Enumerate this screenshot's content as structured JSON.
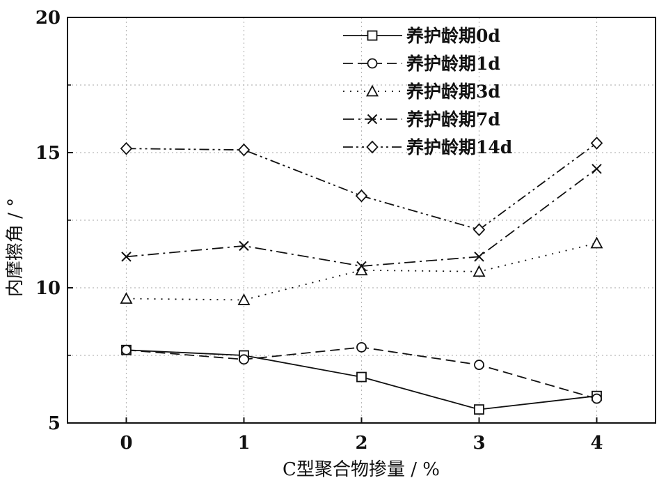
{
  "chart_data": {
    "type": "line",
    "xlabel": "C型聚合物掺量 / %",
    "ylabel": "内摩擦角 / °",
    "x": [
      0,
      1,
      2,
      3,
      4
    ],
    "x_ticks": [
      "0",
      "1",
      "2",
      "3",
      "4"
    ],
    "y_ticks": [
      "5",
      "10",
      "15",
      "20"
    ],
    "xlim": [
      -0.5,
      4.5
    ],
    "ylim": [
      5,
      20
    ],
    "grid": true,
    "legend_position": "top-right",
    "series": [
      {
        "name": "养护龄期0d",
        "marker": "square",
        "dash": "solid",
        "values": [
          7.7,
          7.5,
          6.7,
          5.5,
          6.0
        ]
      },
      {
        "name": "养护龄期1d",
        "marker": "circle",
        "dash": "dashed",
        "values": [
          7.7,
          7.35,
          7.8,
          7.15,
          5.9
        ]
      },
      {
        "name": "养护龄期3d",
        "marker": "triangle",
        "dash": "dotted",
        "values": [
          9.6,
          9.55,
          10.65,
          10.6,
          11.65
        ]
      },
      {
        "name": "养护龄期7d",
        "marker": "x",
        "dash": "dashdot",
        "values": [
          11.15,
          11.55,
          10.8,
          11.15,
          14.4
        ]
      },
      {
        "name": "养护龄期14d",
        "marker": "diamond",
        "dash": "dashdotdot",
        "values": [
          15.15,
          15.1,
          13.4,
          12.15,
          15.35
        ]
      }
    ]
  }
}
